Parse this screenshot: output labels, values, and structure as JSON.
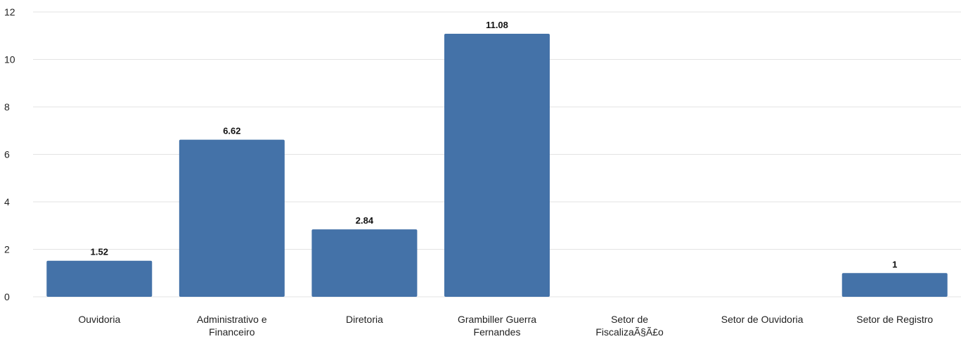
{
  "chart_data": {
    "type": "bar",
    "categories": [
      [
        "Ouvidoria"
      ],
      [
        "Administrativo e",
        "Financeiro"
      ],
      [
        "Diretoria"
      ],
      [
        "Grambiller Guerra",
        "Fernandes"
      ],
      [
        "Setor de",
        "FiscalizaÃ§Ã£o"
      ],
      [
        "Setor de Ouvidoria"
      ],
      [
        "Setor de Registro"
      ]
    ],
    "values": [
      1.52,
      6.62,
      2.84,
      11.08,
      0,
      0,
      1
    ],
    "value_labels": [
      "1.52",
      "6.62",
      "2.84",
      "11.08",
      "",
      "",
      "1"
    ],
    "ylim": [
      0,
      12
    ],
    "yticks": [
      0,
      2,
      4,
      6,
      8,
      10,
      12
    ],
    "grid": true,
    "colors": {
      "bar": "#4472a8",
      "grid": "#e3e3e3"
    }
  }
}
